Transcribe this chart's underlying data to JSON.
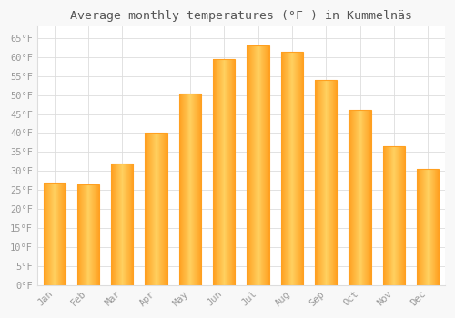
{
  "title": "Average monthly temperatures (°F ) in Kummelnäs",
  "months": [
    "Jan",
    "Feb",
    "Mar",
    "Apr",
    "May",
    "Jun",
    "Jul",
    "Aug",
    "Sep",
    "Oct",
    "Nov",
    "Dec"
  ],
  "values": [
    27,
    26.5,
    32,
    40,
    50.5,
    59.5,
    63,
    61.5,
    54,
    46,
    36.5,
    30.5
  ],
  "bar_color_center": "#FFD060",
  "bar_color_edge": "#FFA020",
  "background_color": "#F8F8F8",
  "plot_bg_color": "#FFFFFF",
  "grid_color": "#DDDDDD",
  "tick_label_color": "#999999",
  "title_color": "#555555",
  "ylim": [
    0,
    68
  ],
  "yticks": [
    0,
    5,
    10,
    15,
    20,
    25,
    30,
    35,
    40,
    45,
    50,
    55,
    60,
    65
  ],
  "ytick_labels": [
    "0°F",
    "5°F",
    "10°F",
    "15°F",
    "20°F",
    "25°F",
    "30°F",
    "35°F",
    "40°F",
    "45°F",
    "50°F",
    "55°F",
    "60°F",
    "65°F"
  ],
  "title_fontsize": 9.5,
  "tick_fontsize": 7.5,
  "figsize": [
    5.0,
    3.5
  ],
  "dpi": 100
}
